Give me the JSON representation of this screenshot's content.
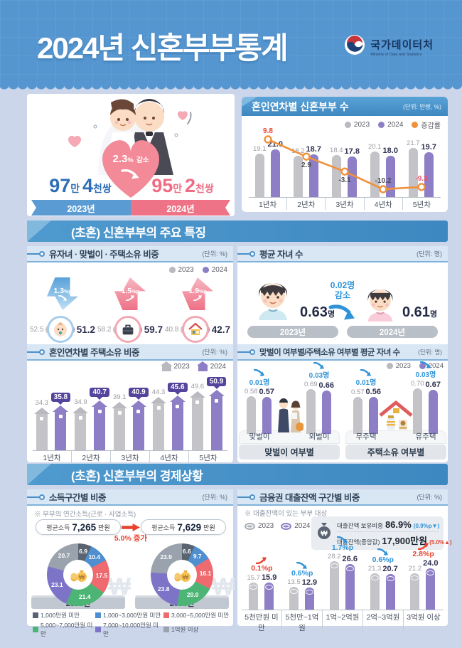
{
  "header": {
    "title": "2024년 신혼부부통계",
    "agency": "국가데이터처",
    "agency_en": "Ministry of Data and Statistics"
  },
  "hero": {
    "decrease_value": "2.3",
    "decrease_pct": "%",
    "decrease_word": "감소",
    "count_2023": {
      "n1": "97",
      "u1": "만 ",
      "n2": "4",
      "u2": "천쌍"
    },
    "count_2024": {
      "n1": "95",
      "u1": "만 ",
      "n2": "2",
      "u2": "천쌍"
    },
    "ribbon_2023": "2023년",
    "ribbon_2024": "2024년"
  },
  "sections": {
    "features": "(초혼) 신혼부부의 주요 특징",
    "economy": "(초혼) 신혼부부의 경제상황"
  },
  "panels": {
    "yearly": {
      "title": "혼인연차별 신혼부부 수",
      "unit": "(단위: 만쌍, %)",
      "legend_2023": "2023",
      "legend_2024": "2024",
      "legend_rate": "증감률"
    },
    "key_ratios": {
      "title": "유자녀 · 맞벌이 · 주택소유 비중",
      "unit": "(단위: %)",
      "legend_2023": "2023",
      "legend_2024": "2024",
      "items": [
        {
          "label": "유자녀",
          "v2023": "52.5",
          "v2024": "51.2",
          "delta": "1.3",
          "delta_unit": "%p",
          "dir": "down"
        },
        {
          "label": "맞벌이",
          "v2023": "58.2",
          "v2024": "59.7",
          "delta": "1.5",
          "delta_unit": "%p",
          "dir": "up"
        },
        {
          "label": "주택소유",
          "v2023": "40.8",
          "v2024": "42.7",
          "delta": "1.9",
          "delta_unit": "%p",
          "dir": "up"
        }
      ]
    },
    "avg_children": {
      "title": "평균 자녀 수",
      "unit": "(단위: 명)",
      "v2023": "0.63",
      "v2024": "0.61",
      "suffix": "명",
      "delta_line1": "0.02명",
      "delta_line2": "감소",
      "label_2023": "2023년",
      "label_2024": "2024년"
    },
    "ownership": {
      "title": "혼인연차별 주택소유 비중",
      "unit": "(단위: %)",
      "legend_2023": "2023",
      "legend_2024": "2024"
    },
    "children_status": {
      "title": "맞벌이 여부별/주택소유 여부별 평균 자녀 수",
      "unit": "(단위: 명)",
      "legend_2023": "2023",
      "legend_2024": "2024"
    },
    "income": {
      "title": "소득구간별 비중",
      "unit": "(단위: %)",
      "note": "※ 부부의 연간소득(근로 · 사업소득)",
      "avg_label": "평균소득",
      "avg_2023": "7,265",
      "avg_2024": "7,629",
      "avg_unit": "만원",
      "growth": "5.0% 증가",
      "label_2023": "2023년",
      "label_2024": "2024년"
    },
    "loans": {
      "title": "금융권 대출잔액 구간별 비중",
      "unit": "(단위: %)",
      "note": "※ 대출잔액이 있는 부부 대상",
      "legend_2023": "2023",
      "legend_2024": "2024",
      "info1_label": "대출잔액 보유비중",
      "info1_value": "86.9%",
      "info1_delta": "(0.9%p▼)",
      "info2_label": "대출잔액(중앙값)",
      "info2_value": "17,900만원",
      "info2_delta": "(5.0%▲)"
    }
  },
  "chart_data": [
    {
      "id": "couples_by_marriage_year",
      "type": "bar",
      "title": "혼인연차별 신혼부부 수",
      "unit": "만쌍, %",
      "categories": [
        "1년차",
        "2년차",
        "3년차",
        "4년차",
        "5년차"
      ],
      "series": [
        {
          "name": "2023",
          "color": "#c3c3c8",
          "values": [
            19.1,
            18.2,
            18.4,
            20.1,
            21.7
          ]
        },
        {
          "name": "2024",
          "color": "#8d7ec5",
          "values": [
            21.0,
            18.7,
            17.8,
            18.0,
            19.7
          ]
        }
      ],
      "line": {
        "name": "증감률",
        "color": "#f0913a",
        "values": [
          9.8,
          2.9,
          -3.1,
          -10.2,
          -9.3
        ],
        "label_colors": [
          "#e8432e",
          "#4a4a55",
          "#4a4a55",
          "#4a4a55",
          "#e8536a"
        ],
        "label_pos": [
          "above",
          "below",
          "below",
          "above",
          "above"
        ]
      }
    },
    {
      "id": "key_ratios",
      "type": "comparison",
      "unit": "%",
      "items": [
        {
          "label": "유자녀",
          "v2023": 52.5,
          "v2024": 51.2,
          "delta": "-1.3%p"
        },
        {
          "label": "맞벌이",
          "v2023": 58.2,
          "v2024": 59.7,
          "delta": "+1.5%p"
        },
        {
          "label": "주택소유",
          "v2023": 40.8,
          "v2024": 42.7,
          "delta": "+1.9%p"
        }
      ]
    },
    {
      "id": "avg_children",
      "type": "comparison",
      "unit": "명",
      "v2023": 0.63,
      "v2024": 0.61,
      "delta": "-0.02명"
    },
    {
      "id": "home_ownership_by_marriage_year",
      "type": "bar",
      "unit": "%",
      "categories": [
        "1년차",
        "2년차",
        "3년차",
        "4년차",
        "5년차"
      ],
      "series": [
        {
          "name": "2023",
          "color": "#c3c3c8",
          "values": [
            34.3,
            34.9,
            39.1,
            44.3,
            49.6
          ]
        },
        {
          "name": "2024",
          "color": "#8d7ec5",
          "values": [
            35.8,
            40.7,
            40.9,
            45.6,
            50.9
          ]
        }
      ]
    },
    {
      "id": "avg_children_by_status",
      "type": "bar",
      "unit": "명",
      "groups": [
        {
          "label": "맞벌이 여부별",
          "items": [
            {
              "cat": "맞벌이",
              "v2023": 0.58,
              "v2024": 0.57,
              "delta": "0.01명"
            },
            {
              "cat": "외벌이",
              "v2023": 0.69,
              "v2024": 0.66,
              "delta": "0.03명"
            }
          ]
        },
        {
          "label": "주택소유 여부별",
          "items": [
            {
              "cat": "무주택",
              "v2023": 0.57,
              "v2024": 0.56,
              "delta": "0.01명"
            },
            {
              "cat": "유주택",
              "v2023": 0.7,
              "v2024": 0.67,
              "delta": "0.03명"
            }
          ]
        }
      ]
    },
    {
      "id": "income_distribution",
      "type": "pie",
      "legend": [
        "1,000만원 미만",
        "1,000~3,000만원 미만",
        "3,000~5,000만원 미만",
        "5,000~7,000만원 미만",
        "7,000~10,000만원 미만",
        "1억원 이상"
      ],
      "colors": [
        "#5a6470",
        "#4f8fd0",
        "#ee6a6e",
        "#4cb576",
        "#7d74c8",
        "#9aa3ad"
      ],
      "pies": [
        {
          "label": "2023년",
          "avg": "7,265만원",
          "values": [
            6.9,
            10.4,
            17.5,
            21.4,
            23.1,
            20.7
          ]
        },
        {
          "label": "2024년",
          "avg": "7,629만원",
          "values": [
            6.6,
            9.7,
            16.1,
            20.0,
            23.8,
            23.9
          ]
        }
      ]
    },
    {
      "id": "loan_balance_distribution",
      "type": "bar",
      "unit": "%",
      "categories": [
        "5천만원 미만",
        "5천만~1억원",
        "1억~2억원",
        "2억~3억원",
        "3억원 이상"
      ],
      "series": [
        {
          "name": "2023",
          "color": "#c3c3c8",
          "values": [
            15.7,
            13.5,
            28.2,
            21.3,
            21.2
          ]
        },
        {
          "name": "2024",
          "color": "#8d7ec5",
          "values": [
            15.9,
            12.9,
            26.6,
            20.7,
            24.0
          ]
        }
      ],
      "deltas": [
        {
          "text": "0.1%p",
          "dir": "up"
        },
        {
          "text": "0.6%p",
          "dir": "down"
        },
        {
          "text": "1.7%p",
          "dir": "down"
        },
        {
          "text": "0.6%p",
          "dir": "down"
        },
        {
          "text": "2.8%p",
          "dir": "up"
        }
      ]
    }
  ]
}
